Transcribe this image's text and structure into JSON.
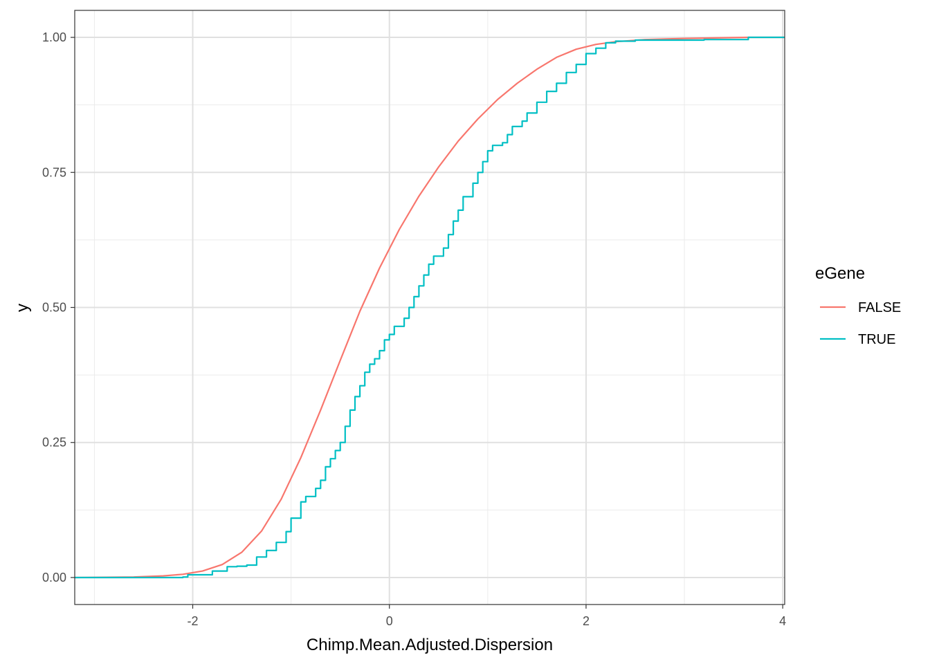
{
  "chart_data": {
    "type": "line",
    "title": "",
    "xlabel": "Chimp.Mean.Adjusted.Dispersion",
    "ylabel": "y",
    "xlim": [
      -3.2,
      4.02
    ],
    "ylim": [
      -0.05,
      1.05
    ],
    "x_ticks": [
      -2,
      0,
      2,
      4
    ],
    "x_tick_labels": [
      "-2",
      "0",
      "2",
      "4"
    ],
    "x_minor_ticks": [
      -3,
      -1,
      1,
      3
    ],
    "y_ticks": [
      0,
      0.25,
      0.5,
      0.75,
      1
    ],
    "y_tick_labels": [
      "0.00",
      "0.25",
      "0.50",
      "0.75",
      "1.00"
    ],
    "y_minor_ticks": [
      0.125,
      0.375,
      0.625,
      0.875
    ],
    "grid": true,
    "legend": {
      "title": "eGene",
      "position": "right"
    },
    "series": [
      {
        "name": "FALSE",
        "color": "#f8766d",
        "step": false,
        "points": [
          [
            -3.2,
            0
          ],
          [
            -2.6,
            0.001
          ],
          [
            -2.3,
            0.003
          ],
          [
            -2.1,
            0.006
          ],
          [
            -1.9,
            0.012
          ],
          [
            -1.7,
            0.024
          ],
          [
            -1.5,
            0.047
          ],
          [
            -1.3,
            0.086
          ],
          [
            -1.1,
            0.145
          ],
          [
            -0.9,
            0.222
          ],
          [
            -0.7,
            0.31
          ],
          [
            -0.5,
            0.402
          ],
          [
            -0.3,
            0.493
          ],
          [
            -0.1,
            0.573
          ],
          [
            0.1,
            0.644
          ],
          [
            0.3,
            0.706
          ],
          [
            0.5,
            0.76
          ],
          [
            0.7,
            0.808
          ],
          [
            0.9,
            0.849
          ],
          [
            1.1,
            0.885
          ],
          [
            1.3,
            0.915
          ],
          [
            1.5,
            0.941
          ],
          [
            1.7,
            0.963
          ],
          [
            1.9,
            0.978
          ],
          [
            2.1,
            0.987
          ],
          [
            2.3,
            0.992
          ],
          [
            2.6,
            0.996
          ],
          [
            3.0,
            0.998
          ],
          [
            3.65,
            1.0
          ],
          [
            4.02,
            1.0
          ]
        ]
      },
      {
        "name": "TRUE",
        "color": "#00bfc4",
        "step": true,
        "points": [
          [
            -3.2,
            0
          ],
          [
            -2.1,
            0.001
          ],
          [
            -2.05,
            0.005
          ],
          [
            -1.8,
            0.012
          ],
          [
            -1.65,
            0.02
          ],
          [
            -1.55,
            0.021
          ],
          [
            -1.45,
            0.023
          ],
          [
            -1.35,
            0.038
          ],
          [
            -1.25,
            0.05
          ],
          [
            -1.15,
            0.065
          ],
          [
            -1.05,
            0.085
          ],
          [
            -1.0,
            0.11
          ],
          [
            -0.9,
            0.14
          ],
          [
            -0.85,
            0.15
          ],
          [
            -0.75,
            0.165
          ],
          [
            -0.7,
            0.18
          ],
          [
            -0.65,
            0.205
          ],
          [
            -0.6,
            0.22
          ],
          [
            -0.55,
            0.235
          ],
          [
            -0.5,
            0.25
          ],
          [
            -0.45,
            0.28
          ],
          [
            -0.4,
            0.31
          ],
          [
            -0.35,
            0.335
          ],
          [
            -0.3,
            0.355
          ],
          [
            -0.25,
            0.38
          ],
          [
            -0.2,
            0.395
          ],
          [
            -0.15,
            0.405
          ],
          [
            -0.1,
            0.42
          ],
          [
            -0.05,
            0.44
          ],
          [
            0.0,
            0.45
          ],
          [
            0.05,
            0.465
          ],
          [
            0.15,
            0.48
          ],
          [
            0.2,
            0.5
          ],
          [
            0.25,
            0.52
          ],
          [
            0.3,
            0.54
          ],
          [
            0.35,
            0.56
          ],
          [
            0.4,
            0.58
          ],
          [
            0.45,
            0.595
          ],
          [
            0.55,
            0.61
          ],
          [
            0.6,
            0.635
          ],
          [
            0.65,
            0.66
          ],
          [
            0.7,
            0.68
          ],
          [
            0.75,
            0.705
          ],
          [
            0.85,
            0.73
          ],
          [
            0.9,
            0.75
          ],
          [
            0.95,
            0.77
          ],
          [
            1.0,
            0.79
          ],
          [
            1.05,
            0.8
          ],
          [
            1.15,
            0.805
          ],
          [
            1.2,
            0.82
          ],
          [
            1.25,
            0.835
          ],
          [
            1.35,
            0.845
          ],
          [
            1.4,
            0.86
          ],
          [
            1.5,
            0.88
          ],
          [
            1.6,
            0.9
          ],
          [
            1.7,
            0.915
          ],
          [
            1.8,
            0.935
          ],
          [
            1.9,
            0.95
          ],
          [
            2.0,
            0.97
          ],
          [
            2.1,
            0.98
          ],
          [
            2.2,
            0.99
          ],
          [
            2.3,
            0.993
          ],
          [
            2.5,
            0.995
          ],
          [
            3.2,
            0.996
          ],
          [
            3.65,
            1.0
          ],
          [
            4.02,
            1.0
          ]
        ]
      }
    ]
  }
}
